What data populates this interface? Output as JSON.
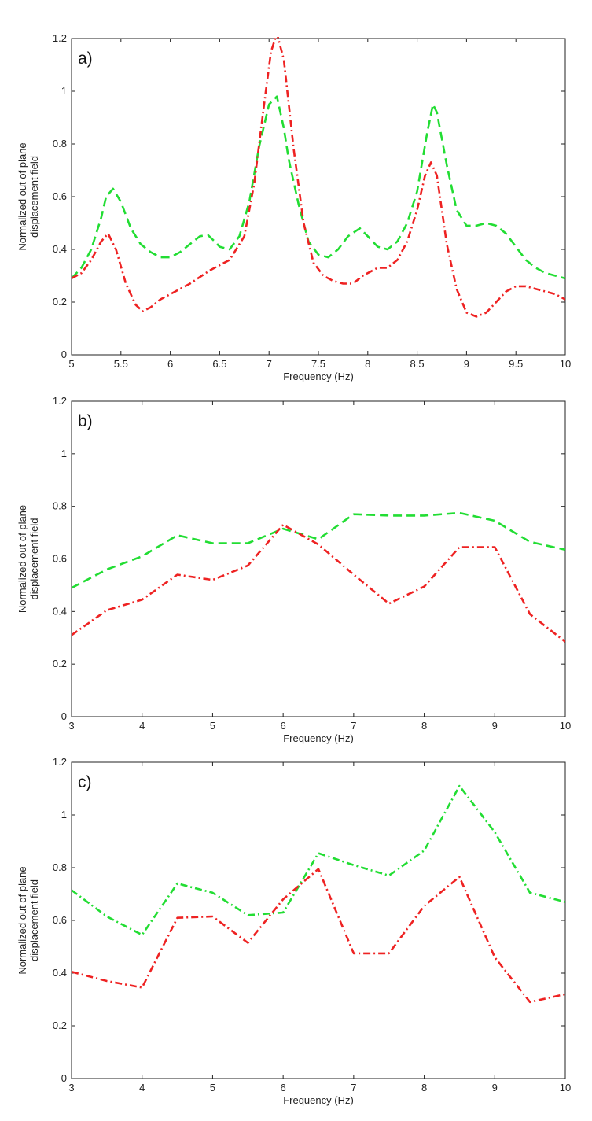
{
  "chart_data": [
    {
      "type": "line",
      "panel_label": "a)",
      "xlabel": "Frequency (Hz)",
      "ylabel_lines": [
        "Normalized out of plane",
        "displacement field"
      ],
      "xlim": [
        5,
        10
      ],
      "ylim": [
        0,
        1.2
      ],
      "xticks": [
        5,
        5.5,
        6,
        6.5,
        7,
        7.5,
        8,
        8.5,
        9,
        9.5,
        10
      ],
      "xtick_labels": [
        "5",
        "5.5",
        "6",
        "6.5",
        "7",
        "7.5",
        "8",
        "8.5",
        "9",
        "9.5",
        "10"
      ],
      "yticks": [
        0,
        0.2,
        0.4,
        0.6,
        0.8,
        1,
        1.2
      ],
      "ytick_labels": [
        "0",
        "0.2",
        "0.4",
        "0.6",
        "0.8",
        "1",
        "1.2"
      ],
      "series": [
        {
          "name": "green",
          "color": "#22dd33",
          "style": "dashed",
          "x": [
            5,
            5.1,
            5.2,
            5.3,
            5.35,
            5.42,
            5.5,
            5.6,
            5.7,
            5.8,
            5.9,
            6.0,
            6.1,
            6.2,
            6.3,
            6.38,
            6.45,
            6.5,
            6.6,
            6.7,
            6.8,
            6.9,
            7.0,
            7.08,
            7.15,
            7.2,
            7.3,
            7.4,
            7.5,
            7.6,
            7.7,
            7.8,
            7.92,
            8.0,
            8.1,
            8.2,
            8.3,
            8.4,
            8.5,
            8.6,
            8.66,
            8.7,
            8.8,
            8.9,
            9.0,
            9.1,
            9.2,
            9.3,
            9.4,
            9.5,
            9.6,
            9.7,
            9.8,
            9.9,
            10
          ],
          "y": [
            0.29,
            0.33,
            0.4,
            0.52,
            0.6,
            0.63,
            0.58,
            0.48,
            0.42,
            0.39,
            0.37,
            0.37,
            0.39,
            0.42,
            0.45,
            0.455,
            0.43,
            0.41,
            0.4,
            0.45,
            0.58,
            0.79,
            0.95,
            0.98,
            0.86,
            0.74,
            0.57,
            0.43,
            0.38,
            0.37,
            0.4,
            0.45,
            0.48,
            0.45,
            0.41,
            0.4,
            0.43,
            0.5,
            0.62,
            0.84,
            0.95,
            0.92,
            0.72,
            0.55,
            0.49,
            0.49,
            0.5,
            0.49,
            0.46,
            0.41,
            0.36,
            0.33,
            0.31,
            0.3,
            0.29
          ]
        },
        {
          "name": "red",
          "color": "#ee2222",
          "style": "dashdot",
          "x": [
            5,
            5.1,
            5.2,
            5.3,
            5.37,
            5.45,
            5.55,
            5.65,
            5.72,
            5.8,
            5.9,
            6.0,
            6.2,
            6.4,
            6.6,
            6.75,
            6.85,
            6.95,
            7.02,
            7.08,
            7.15,
            7.25,
            7.35,
            7.45,
            7.55,
            7.65,
            7.75,
            7.85,
            7.95,
            8.1,
            8.2,
            8.3,
            8.4,
            8.5,
            8.58,
            8.64,
            8.7,
            8.8,
            8.9,
            9.0,
            9.1,
            9.2,
            9.3,
            9.4,
            9.5,
            9.6,
            9.7,
            9.8,
            9.9,
            10
          ],
          "y": [
            0.29,
            0.31,
            0.36,
            0.43,
            0.46,
            0.4,
            0.27,
            0.19,
            0.165,
            0.18,
            0.21,
            0.23,
            0.27,
            0.32,
            0.36,
            0.45,
            0.65,
            0.95,
            1.15,
            1.22,
            1.12,
            0.78,
            0.5,
            0.35,
            0.3,
            0.28,
            0.27,
            0.27,
            0.3,
            0.33,
            0.33,
            0.36,
            0.43,
            0.55,
            0.68,
            0.73,
            0.68,
            0.42,
            0.25,
            0.16,
            0.145,
            0.16,
            0.2,
            0.24,
            0.26,
            0.26,
            0.25,
            0.24,
            0.23,
            0.21
          ]
        }
      ]
    },
    {
      "type": "line",
      "panel_label": "b)",
      "xlabel": "Frequency (Hz)",
      "ylabel_lines": [
        "Normalized out of plane",
        "displacement field"
      ],
      "xlim": [
        3,
        10
      ],
      "ylim": [
        0,
        1.2
      ],
      "xticks": [
        3,
        4,
        5,
        6,
        7,
        8,
        9,
        10
      ],
      "xtick_labels": [
        "3",
        "4",
        "5",
        "6",
        "7",
        "8",
        "9",
        "10"
      ],
      "yticks": [
        0,
        0.2,
        0.4,
        0.6,
        0.8,
        1,
        1.2
      ],
      "ytick_labels": [
        "0",
        "0.2",
        "0.4",
        "0.6",
        "0.8",
        "1",
        "1.2"
      ],
      "series": [
        {
          "name": "green",
          "color": "#22dd33",
          "style": "dashed",
          "x": [
            3,
            3.5,
            4,
            4.5,
            5,
            5.5,
            6,
            6.5,
            7,
            7.5,
            8,
            8.5,
            9,
            9.5,
            10
          ],
          "y": [
            0.49,
            0.56,
            0.61,
            0.69,
            0.66,
            0.66,
            0.715,
            0.675,
            0.77,
            0.765,
            0.765,
            0.775,
            0.745,
            0.665,
            0.635
          ]
        },
        {
          "name": "red",
          "color": "#ee2222",
          "style": "dashdot",
          "x": [
            3,
            3.5,
            4,
            4.5,
            5,
            5.5,
            6,
            6.5,
            7,
            7.5,
            8,
            8.5,
            9,
            9.5,
            10
          ],
          "y": [
            0.31,
            0.405,
            0.445,
            0.54,
            0.52,
            0.575,
            0.73,
            0.655,
            0.54,
            0.43,
            0.495,
            0.645,
            0.645,
            0.39,
            0.285
          ]
        }
      ]
    },
    {
      "type": "line",
      "panel_label": "c)",
      "xlabel": "Frequency (Hz)",
      "ylabel_lines": [
        "Normalized out of plane",
        "displacement field"
      ],
      "xlim": [
        3,
        10
      ],
      "ylim": [
        0,
        1.2
      ],
      "xticks": [
        3,
        4,
        5,
        6,
        7,
        8,
        9,
        10
      ],
      "xtick_labels": [
        "3",
        "4",
        "5",
        "6",
        "7",
        "8",
        "9",
        "10"
      ],
      "yticks": [
        0,
        0.2,
        0.4,
        0.6,
        0.8,
        1,
        1.2
      ],
      "ytick_labels": [
        "0",
        "0.2",
        "0.4",
        "0.6",
        "0.8",
        "1",
        "1.2"
      ],
      "series": [
        {
          "name": "green",
          "color": "#22dd33",
          "style": "dashdot",
          "x": [
            3,
            3.5,
            4,
            4.5,
            5,
            5.5,
            6,
            6.5,
            7,
            7.5,
            8,
            8.5,
            9,
            9.5,
            10
          ],
          "y": [
            0.715,
            0.615,
            0.545,
            0.74,
            0.705,
            0.62,
            0.63,
            0.855,
            0.81,
            0.77,
            0.865,
            1.11,
            0.935,
            0.705,
            0.67
          ]
        },
        {
          "name": "red",
          "color": "#ee2222",
          "style": "dashdot",
          "x": [
            3,
            3.5,
            4,
            4.5,
            5,
            5.5,
            6,
            6.5,
            7,
            7.5,
            8,
            8.5,
            9,
            9.5,
            10
          ],
          "y": [
            0.405,
            0.37,
            0.345,
            0.61,
            0.615,
            0.515,
            0.68,
            0.795,
            0.475,
            0.475,
            0.655,
            0.765,
            0.46,
            0.29,
            0.32
          ]
        }
      ]
    }
  ]
}
